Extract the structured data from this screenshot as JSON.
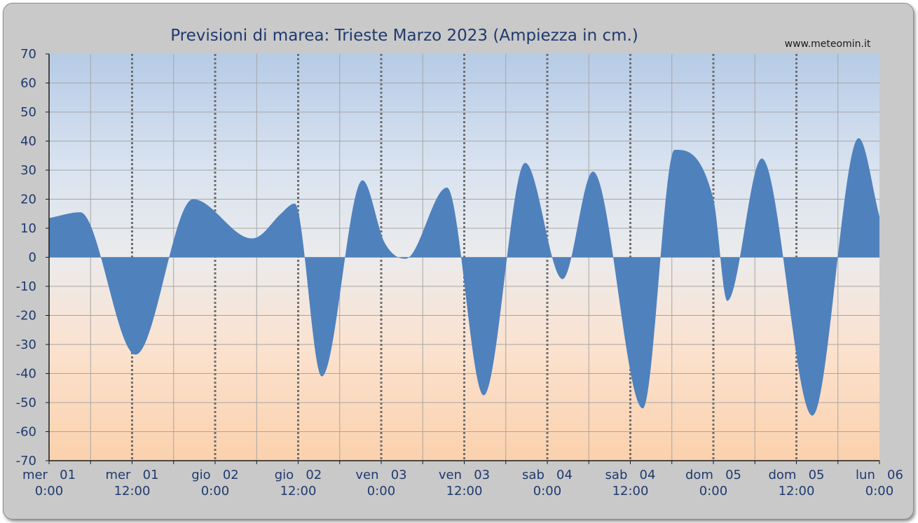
{
  "chart_data": {
    "type": "area",
    "title": "Previsioni di marea: Trieste Marzo 2023 (Ampiezza in cm.)",
    "credit": "www.meteomin.it",
    "xlabel": "",
    "ylabel": "",
    "ylim": [
      -70,
      70
    ],
    "yticks": [
      70,
      60,
      50,
      40,
      30,
      20,
      10,
      0,
      -10,
      -20,
      -30,
      -40,
      -50,
      -60,
      -70
    ],
    "x_unit": "hours from mer 01 0:00",
    "xlim": [
      0,
      120
    ],
    "xtick_labels": [
      {
        "h": 0,
        "day": "mer   01",
        "time": "0:00"
      },
      {
        "h": 12,
        "day": "mer   01",
        "time": "12:00"
      },
      {
        "h": 24,
        "day": "gio   02",
        "time": "0:00"
      },
      {
        "h": 36,
        "day": "gio   02",
        "time": "12:00"
      },
      {
        "h": 48,
        "day": "ven   03",
        "time": "0:00"
      },
      {
        "h": 60,
        "day": "ven   03",
        "time": "12:00"
      },
      {
        "h": 72,
        "day": "sab   04",
        "time": "0:00"
      },
      {
        "h": 84,
        "day": "sab   04",
        "time": "12:00"
      },
      {
        "h": 96,
        "day": "dom   05",
        "time": "0:00"
      },
      {
        "h": 108,
        "day": "dom   05",
        "time": "12:00"
      },
      {
        "h": 120,
        "day": "lun   06",
        "time": "0:00"
      }
    ],
    "grid": true,
    "series": [
      {
        "color": "#4f81bd",
        "x": [
          0,
          4.5,
          12.5,
          20.8,
          29.3,
          30.5,
          33.5,
          35.5,
          39.4,
          45.3,
          48.5,
          51.5,
          57.5,
          62.8,
          68.8,
          74.2,
          78.6,
          85.8,
          90.4,
          96,
          98,
          103,
          110.3,
          117,
          120
        ],
        "y": [
          13.5,
          15.5,
          -33.5,
          20,
          6.5,
          7.5,
          15,
          18.5,
          -41,
          26.5,
          5,
          -0.5,
          24,
          -47.5,
          32.5,
          -7.5,
          29.5,
          -52,
          37,
          20,
          -15,
          34,
          -54.5,
          41,
          14
        ]
      }
    ]
  }
}
